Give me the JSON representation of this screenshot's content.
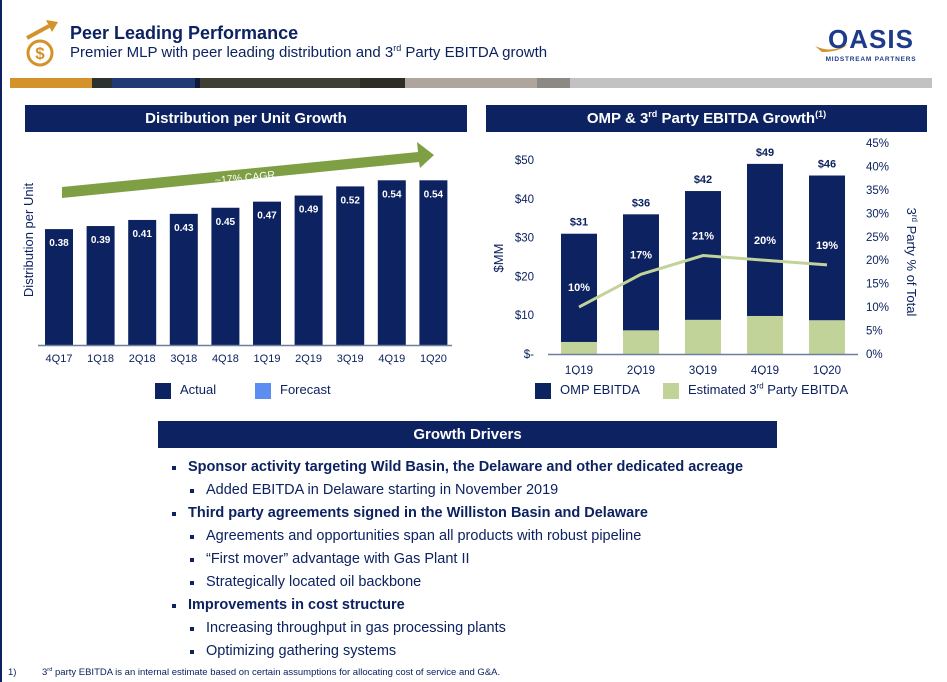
{
  "header": {
    "title": "Peer Leading Performance",
    "subtitle_pre": "Premier MLP with peer leading distribution and 3",
    "subtitle_sup": "rd",
    "subtitle_post": " Party EBITDA growth",
    "icon": "dollar-growth-icon",
    "logo_text": "OASIS",
    "logo_subtext": "MIDSTREAM PARTNERS"
  },
  "colors": {
    "navy": "#0d2260",
    "green_light": "#c2d39a",
    "green_arrow": "#7f9f45",
    "forecast": "#5b8ef0",
    "orange": "#d4922a"
  },
  "chart_data": [
    {
      "type": "bar",
      "title": "Distribution per Unit Growth",
      "ylabel": "Distribution per Unit",
      "xlabel": "",
      "categories": [
        "4Q17",
        "1Q18",
        "2Q18",
        "3Q18",
        "4Q18",
        "1Q19",
        "2Q19",
        "3Q19",
        "4Q19",
        "1Q20"
      ],
      "values": [
        0.38,
        0.39,
        0.41,
        0.43,
        0.45,
        0.47,
        0.49,
        0.52,
        0.54,
        0.54
      ],
      "value_labels": [
        "0.38",
        "0.39",
        "0.41",
        "0.43",
        "0.45",
        "0.47",
        "0.49",
        "0.52",
        "0.54",
        "0.54"
      ],
      "ylim": [
        0,
        0.6
      ],
      "annotation": "~17% CAGR",
      "legend": [
        "Actual",
        "Forecast"
      ],
      "legend_position": "bottom",
      "grid": false
    },
    {
      "type": "bar",
      "title_pre": "OMP & 3",
      "title_sup": "rd",
      "title_post": " Party EBITDA Growth",
      "title_note": "(1)",
      "stacked": true,
      "ylabel": "$MM",
      "y2label_pre": "3",
      "y2label_sup": "rd",
      "y2label_post": " Party % of Total",
      "categories": [
        "1Q19",
        "2Q19",
        "3Q19",
        "4Q19",
        "1Q20"
      ],
      "series": [
        {
          "name": "Estimated 3rd Party EBITDA",
          "values": [
            3.1,
            6.1,
            8.8,
            9.8,
            8.7
          ]
        },
        {
          "name": "OMP EBITDA",
          "values": [
            27.9,
            29.9,
            33.2,
            39.2,
            37.3
          ]
        }
      ],
      "totals": [
        31,
        36,
        42,
        49,
        46
      ],
      "total_labels": [
        "$31",
        "$36",
        "$42",
        "$49",
        "$46"
      ],
      "line": {
        "name": "3rd Party % of Total",
        "values": [
          10,
          17,
          21,
          20,
          19
        ],
        "labels": [
          "10%",
          "17%",
          "21%",
          "20%",
          "19%"
        ]
      },
      "yticks": [
        "$-",
        "$10",
        "$20",
        "$30",
        "$40",
        "$50"
      ],
      "ylim": [
        0,
        50
      ],
      "y2ticks": [
        "0%",
        "5%",
        "10%",
        "15%",
        "20%",
        "25%",
        "30%",
        "35%",
        "40%",
        "45%"
      ],
      "y2lim": [
        0,
        45
      ],
      "legend": [
        "OMP EBITDA",
        "Estimated 3",
        "rd",
        " Party EBITDA"
      ],
      "legend_position": "bottom",
      "grid": false
    }
  ],
  "drivers": {
    "title": "Growth Drivers",
    "items": [
      {
        "level": 1,
        "text": "Sponsor activity targeting Wild Basin, the Delaware and other dedicated acreage"
      },
      {
        "level": 2,
        "text": "Added EBITDA in Delaware starting in November 2019"
      },
      {
        "level": 1,
        "text": "Third party agreements signed in the Williston Basin and Delaware"
      },
      {
        "level": 2,
        "text": "Agreements and opportunities span all products with robust pipeline"
      },
      {
        "level": 2,
        "text": "“First mover” advantage with Gas Plant II"
      },
      {
        "level": 2,
        "text": "Strategically located oil backbone"
      },
      {
        "level": 1,
        "text": "Improvements in cost structure"
      },
      {
        "level": 2,
        "text": "Increasing throughput in gas processing plants"
      },
      {
        "level": 2,
        "text": "Optimizing gathering systems"
      }
    ]
  },
  "footnote": {
    "num": "1)",
    "sup_pre": "3",
    "sup": "rd",
    "text": " party EBITDA is an internal estimate based on certain assumptions for allocating cost of service and G&A."
  }
}
